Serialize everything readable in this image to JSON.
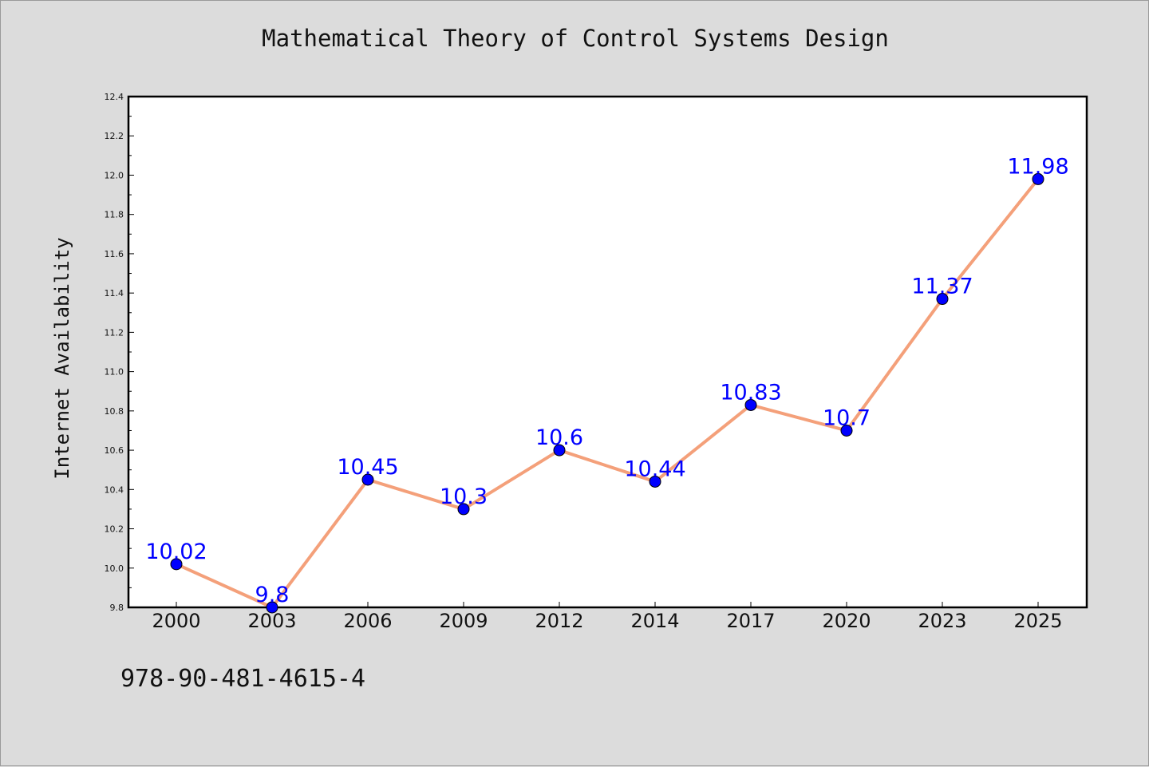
{
  "isbn": "978-90-481-4615-4",
  "chart_data": {
    "type": "line",
    "title": "Mathematical Theory of Control Systems Design",
    "xlabel": "",
    "ylabel": "Internet Availability",
    "categories": [
      "2000",
      "2003",
      "2006",
      "2009",
      "2012",
      "2014",
      "2017",
      "2020",
      "2023",
      "2025"
    ],
    "series": [
      {
        "values": [
          10.02,
          9.8,
          10.45,
          10.3,
          10.6,
          10.44,
          10.83,
          10.7,
          11.37,
          11.98
        ]
      }
    ],
    "data_labels": [
      "10.02",
      "9.8",
      "10.45",
      "10.3",
      "10.6",
      "10.44",
      "10.83",
      "10.7",
      "11.37",
      "11.98"
    ],
    "ylim": [
      9.8,
      12.4
    ],
    "yticks": [
      "9.8",
      "10.0",
      "10.2",
      "10.4",
      "10.6",
      "10.8",
      "11.0",
      "11.2",
      "11.4",
      "11.6",
      "11.8",
      "12.0",
      "12.2",
      "12.4"
    ],
    "line_color": "#f4a07a",
    "marker_color": "#0000ff",
    "label_color": "#0000ff",
    "grid": false,
    "legend": "none"
  }
}
